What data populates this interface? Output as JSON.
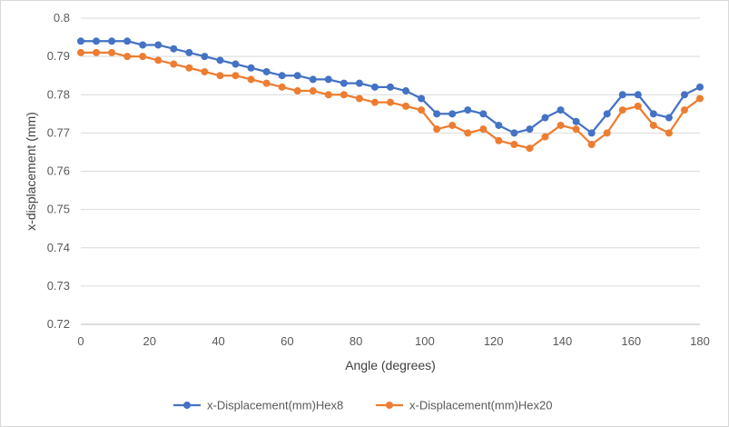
{
  "chart_data": {
    "type": "line",
    "title": "",
    "xlabel": "Angle (degrees)",
    "ylabel": "x-displacement (mm)",
    "xlim": [
      0,
      180
    ],
    "ylim": [
      0.72,
      0.8
    ],
    "xticks": [
      0,
      20,
      40,
      60,
      80,
      100,
      120,
      140,
      160,
      180
    ],
    "yticks": [
      0.72,
      0.73,
      0.74,
      0.75,
      0.76,
      0.77,
      0.78,
      0.79,
      0.8
    ],
    "xtick_labels": [
      "0",
      "20",
      "40",
      "60",
      "80",
      "100",
      "120",
      "140",
      "160",
      "180"
    ],
    "ytick_labels": [
      "0.72",
      "0.73",
      "0.74",
      "0.75",
      "0.76",
      "0.77",
      "0.78",
      "0.79",
      "0.8"
    ],
    "grid": "horizontal",
    "legend_position": "bottom",
    "x": [
      0,
      4.5,
      9,
      13.5,
      18,
      22.5,
      27,
      31.5,
      36,
      40.5,
      45,
      49.5,
      54,
      58.5,
      63,
      67.5,
      72,
      76.5,
      81,
      85.5,
      90,
      94.5,
      99,
      103.5,
      108,
      112.5,
      117,
      121.5,
      126,
      130.5,
      135,
      139.5,
      144,
      148.5,
      153,
      157.5,
      162,
      166.5,
      171,
      175.5,
      180
    ],
    "series": [
      {
        "name": "x-Displacement(mm)Hex8",
        "color": "#4472c4",
        "values": [
          0.794,
          0.794,
          0.794,
          0.794,
          0.793,
          0.793,
          0.792,
          0.791,
          0.79,
          0.789,
          0.788,
          0.787,
          0.786,
          0.785,
          0.785,
          0.784,
          0.784,
          0.783,
          0.783,
          0.782,
          0.782,
          0.781,
          0.779,
          0.775,
          0.775,
          0.776,
          0.775,
          0.772,
          0.77,
          0.771,
          0.774,
          0.776,
          0.773,
          0.77,
          0.775,
          0.78,
          0.78,
          0.775,
          0.774,
          0.78,
          0.782
        ]
      },
      {
        "name": "x-Displacement(mm)Hex20",
        "color": "#ed7d31",
        "values": [
          0.791,
          0.791,
          0.791,
          0.79,
          0.79,
          0.789,
          0.788,
          0.787,
          0.786,
          0.785,
          0.785,
          0.784,
          0.783,
          0.782,
          0.781,
          0.781,
          0.78,
          0.78,
          0.779,
          0.778,
          0.778,
          0.777,
          0.776,
          0.771,
          0.772,
          0.77,
          0.771,
          0.768,
          0.767,
          0.766,
          0.769,
          0.772,
          0.771,
          0.767,
          0.77,
          0.776,
          0.777,
          0.772,
          0.77,
          0.776,
          0.779
        ]
      }
    ]
  }
}
